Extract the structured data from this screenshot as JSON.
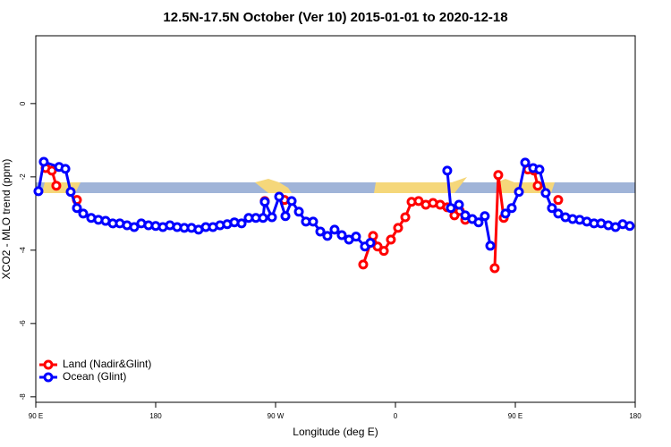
{
  "chart_data": {
    "type": "line",
    "title": "12.5N-17.5N October (Ver 10)   2015-01-01 to 2020-12-18",
    "x_label": "Longitude (deg E)",
    "y_label": "XCO2 - MLO trend (ppm)",
    "xlim": [
      90,
      540
    ],
    "ylim": [
      -8.15,
      1.85
    ],
    "xticks": [
      {
        "value": 90,
        "label": "90 E"
      },
      180,
      {
        "value": 270,
        "label": "90 W"
      },
      {
        "value": 360,
        "label": "0"
      },
      {
        "value": 450,
        "label": "90 E"
      },
      {
        "value": 540,
        "label": "180"
      }
    ],
    "yticks": [
      0,
      -2,
      -4,
      -6,
      -8
    ],
    "legend": "bottom-left",
    "series": [
      {
        "name": "Land (Nadir&Glint)",
        "color": "#ff0000",
        "x": [
          97.4,
          102.1,
          105.4,
          null,
          120.9,
          null,
          261.9,
          null,
          276.7,
          null,
          335.8,
          343.2,
          346.6,
          351.3,
          356.6,
          362.0,
          367.4,
          372.1,
          377.4,
          382.8,
          388.2,
          393.6,
          398.9,
          404.3,
          408.3,
          412.4,
          null,
          434.5,
          437.2,
          441.3,
          null,
          459.4,
          464.1,
          466.8,
          null,
          482.2
        ],
        "values": [
          -1.76,
          -1.83,
          -2.24,
          null,
          -2.63,
          null,
          -2.66,
          null,
          -2.63,
          null,
          -4.39,
          -3.61,
          -3.9,
          -4.02,
          -3.71,
          -3.39,
          -3.1,
          -2.68,
          -2.66,
          -2.76,
          -2.71,
          -2.76,
          -2.83,
          -3.05,
          -2.93,
          -3.17,
          null,
          -4.49,
          -1.95,
          -3.12,
          null,
          -1.8,
          -1.83,
          -2.24,
          null,
          -2.63
        ]
      },
      {
        "name": "Ocean (Glint)",
        "color": "#0000ff",
        "x": [
          92.0,
          96.0,
          107.5,
          112.2,
          116.2,
          120.9,
          125.6,
          131.6,
          137.0,
          142.4,
          147.8,
          153.1,
          158.5,
          163.9,
          169.2,
          174.6,
          180.0,
          185.4,
          190.7,
          196.1,
          201.5,
          206.9,
          212.2,
          217.6,
          223.0,
          228.3,
          233.7,
          239.1,
          244.5,
          249.8,
          255.2,
          260.6,
          261.9,
          267.3,
          272.7,
          277.4,
          282.1,
          287.5,
          292.8,
          298.2,
          303.6,
          308.9,
          314.3,
          319.7,
          325.1,
          330.4,
          337.1,
          341.2,
          null,
          398.9,
          401.6,
          407.7,
          412.4,
          417.7,
          422.4,
          427.1,
          431.2,
          null,
          442.6,
          447.3,
          452.7,
          457.4,
          463.4,
          468.1,
          472.8,
          477.5,
          482.2,
          487.6,
          493.0,
          498.3,
          503.7,
          509.1,
          514.4,
          519.8,
          525.2,
          530.6,
          535.9
        ],
        "values": [
          -2.39,
          -1.59,
          -1.73,
          -1.78,
          -2.41,
          -2.85,
          -3.0,
          -3.12,
          -3.17,
          -3.2,
          -3.27,
          -3.27,
          -3.32,
          -3.37,
          -3.27,
          -3.32,
          -3.34,
          -3.37,
          -3.32,
          -3.37,
          -3.39,
          -3.39,
          -3.44,
          -3.37,
          -3.37,
          -3.32,
          -3.29,
          -3.24,
          -3.27,
          -3.12,
          -3.12,
          -3.12,
          -2.68,
          -3.1,
          -2.54,
          -3.07,
          -2.66,
          -2.95,
          -3.22,
          -3.22,
          -3.49,
          -3.61,
          -3.44,
          -3.59,
          -3.71,
          -3.63,
          -3.9,
          -3.8,
          null,
          -1.83,
          -2.85,
          -2.76,
          -3.05,
          -3.15,
          -3.24,
          -3.07,
          -3.88,
          null,
          -3.0,
          -2.85,
          -2.41,
          -1.61,
          -1.76,
          -1.8,
          -2.44,
          -2.85,
          -3.0,
          -3.1,
          -3.15,
          -3.17,
          -3.22,
          -3.27,
          -3.27,
          -3.32,
          -3.37,
          -3.29,
          -3.34
        ]
      }
    ]
  }
}
